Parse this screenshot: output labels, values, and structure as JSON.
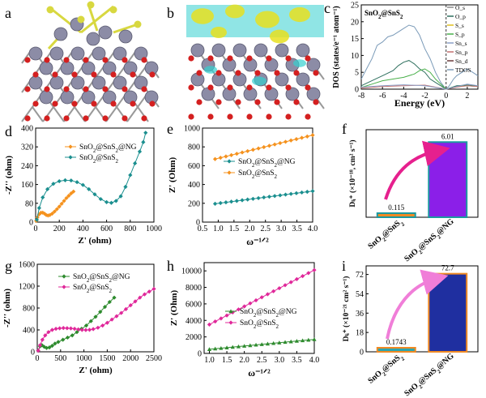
{
  "colors": {
    "orange": "#f5921e",
    "teal": "#1b8f8f",
    "green": "#2e8b2e",
    "magenta": "#e0289a",
    "purple": "#8b1fe8",
    "navy": "#1f2fa0",
    "barOrange": "#f08a24",
    "tealEdge": "#1b9aa0",
    "snAtom": "#8c8ca6",
    "oAtom": "#d42020",
    "sAtom": "#d8d840",
    "cyanIso": "#35d0d0",
    "yellowIso": "#e8e020"
  },
  "panels": {
    "a": {
      "label": "a"
    },
    "b": {
      "label": "b"
    },
    "c": {
      "label": "c"
    },
    "d": {
      "label": "d"
    },
    "e": {
      "label": "e"
    },
    "f": {
      "label": "f"
    },
    "g": {
      "label": "g"
    },
    "h": {
      "label": "h"
    },
    "i": {
      "label": "i"
    }
  },
  "chart_data": [
    {
      "id": "c",
      "type": "line",
      "title": "SnO2@SnS2",
      "xlabel": "Energy (eV)",
      "ylabel": "DOS (states/e⁻¹ atom⁻¹)",
      "xlim": [
        -8,
        3
      ],
      "ylim": [
        0,
        25
      ],
      "xticks": [
        -8,
        -6,
        -4,
        -2,
        0,
        2
      ],
      "yticks": [
        0,
        5,
        10,
        15,
        20,
        25
      ],
      "fermi_level": 0,
      "legend": [
        "O_s",
        "O_p",
        "S_s",
        "S_p",
        "Sn_s",
        "Sn_p",
        "Sn_d",
        "TDOS"
      ],
      "series": [
        {
          "name": "TDOS",
          "color": "#7a9ab8",
          "x": [
            -8,
            -7.5,
            -7,
            -6.5,
            -6,
            -5.5,
            -5,
            -4.5,
            -4,
            -3.5,
            -3,
            -2.5,
            -2,
            -1.5,
            -1,
            -0.5,
            0,
            0.3,
            0.7,
            1,
            1.5,
            2,
            2.5,
            3
          ],
          "y": [
            3,
            6,
            9,
            13,
            14,
            15.5,
            16,
            17,
            18,
            19,
            18.5,
            16,
            12,
            9,
            5,
            2,
            0,
            1,
            3,
            4,
            5,
            6,
            5,
            4
          ]
        },
        {
          "name": "O_p",
          "color": "#2e6f5e",
          "x": [
            -8,
            -7,
            -6,
            -5,
            -4.5,
            -4,
            -3.5,
            -3,
            -2.5,
            -2,
            -1.5,
            -1,
            -0.5,
            0,
            0.5,
            1,
            2,
            3
          ],
          "y": [
            1,
            2.5,
            4,
            5.5,
            7,
            8,
            8.5,
            7.5,
            6,
            5,
            3,
            2,
            1,
            0,
            0.5,
            1,
            1.2,
            1
          ]
        },
        {
          "name": "S_p",
          "color": "#49b04a",
          "x": [
            -8,
            -7,
            -6,
            -5,
            -4,
            -3,
            -2.5,
            -2,
            -1.5,
            -1,
            -0.5,
            0,
            1,
            2,
            3
          ],
          "y": [
            0.5,
            1.5,
            2.5,
            3,
            3.5,
            4.5,
            5.5,
            6,
            5,
            3,
            1.5,
            0,
            0.8,
            1,
            0.8
          ]
        },
        {
          "name": "Sn_p",
          "color": "#c47070",
          "x": [
            -8,
            -6,
            -4,
            -2,
            0,
            1,
            2,
            3
          ],
          "y": [
            0.3,
            0.8,
            1,
            1.2,
            0,
            0.6,
            1,
            0.8
          ]
        },
        {
          "name": "Sn_s",
          "color": "#8aa0c8",
          "x": [
            -8,
            -6,
            -4,
            -2,
            0,
            1,
            2,
            3
          ],
          "y": [
            0.6,
            1,
            1.3,
            1,
            0,
            0.8,
            1.5,
            1
          ]
        }
      ]
    },
    {
      "id": "d",
      "type": "scatter",
      "xlabel": "Z' (ohm)",
      "ylabel": "-Z'' (ohm)",
      "xlim": [
        0,
        1000
      ],
      "ylim": [
        0,
        400
      ],
      "xticks": [
        0,
        200,
        400,
        600,
        800,
        1000
      ],
      "yticks": [
        0,
        80,
        160,
        240,
        320,
        400
      ],
      "series": [
        {
          "name": "SnO2@SnS2@NG",
          "color": "#f5921e",
          "marker": "diamond",
          "x": [
            5,
            15,
            30,
            45,
            60,
            75,
            90,
            105,
            120,
            140,
            160,
            180,
            200,
            220,
            240,
            260,
            280,
            300,
            320
          ],
          "y": [
            5,
            20,
            33,
            40,
            40,
            36,
            30,
            28,
            30,
            36,
            45,
            55,
            66,
            78,
            90,
            102,
            112,
            122,
            130
          ]
        },
        {
          "name": "SnO2@SnS2",
          "color": "#1b8f8f",
          "marker": "diamond",
          "x": [
            10,
            30,
            60,
            100,
            150,
            200,
            250,
            300,
            350,
            400,
            450,
            500,
            550,
            600,
            640,
            680,
            720,
            760,
            800,
            840,
            880,
            910,
            930
          ],
          "y": [
            10,
            60,
            105,
            140,
            163,
            174,
            178,
            177,
            170,
            158,
            140,
            118,
            98,
            85,
            82,
            90,
            110,
            150,
            200,
            250,
            300,
            340,
            380
          ]
        }
      ]
    },
    {
      "id": "e",
      "type": "line",
      "xlabel": "ω⁻¹ᐟ²",
      "ylabel": "Z' (Ohm)",
      "xlim": [
        0.5,
        4.0
      ],
      "ylim": [
        0,
        1000
      ],
      "xticks": [
        0.5,
        1.0,
        1.5,
        2.0,
        2.5,
        3.0,
        3.5,
        4.0
      ],
      "yticks": [
        0,
        200,
        400,
        600,
        800,
        1000
      ],
      "series": [
        {
          "name": "SnO2@SnS2@NG",
          "color": "#1b8f8f",
          "marker": "diamond",
          "x_range": [
            0.9,
            4.0
          ],
          "y_range": [
            195,
            330
          ]
        },
        {
          "name": "SnO2@SnS2",
          "color": "#f5921e",
          "marker": "diamond",
          "x_range": [
            0.9,
            4.0
          ],
          "y_range": [
            670,
            925
          ]
        }
      ]
    },
    {
      "id": "f",
      "type": "bar",
      "ylabel": "Dₗᵢ⁺ (×10⁻¹⁸, cm² s⁻¹)",
      "categories": [
        "SnO2@SnS2",
        "SnO2@SnS2@NG"
      ],
      "values": [
        0.115,
        6.01
      ],
      "value_labels": [
        "0.115",
        "6.01"
      ],
      "ylim": [
        0,
        7
      ]
    },
    {
      "id": "g",
      "type": "scatter",
      "xlabel": "Z' (ohm)",
      "ylabel": "-Z'' (ohm)",
      "xlim": [
        0,
        2500
      ],
      "ylim": [
        0,
        1600
      ],
      "xticks": [
        0,
        500,
        1000,
        1500,
        2000,
        2500
      ],
      "yticks": [
        0,
        400,
        800,
        1200,
        1600
      ],
      "series": [
        {
          "name": "SnO2@SnS2@NG",
          "color": "#2e8b2e",
          "marker": "diamond",
          "x": [
            20,
            60,
            100,
            150,
            200,
            260,
            320,
            380,
            450,
            550,
            650,
            750,
            850,
            950,
            1050,
            1150,
            1250,
            1350,
            1450,
            1550,
            1650
          ],
          "y": [
            20,
            100,
            120,
            90,
            70,
            80,
            110,
            150,
            180,
            220,
            260,
            300,
            360,
            420,
            480,
            560,
            640,
            730,
            820,
            910,
            990
          ]
        },
        {
          "name": "SnO2@SnS2",
          "color": "#e0289a",
          "marker": "diamond",
          "x": [
            20,
            60,
            110,
            170,
            240,
            320,
            400,
            480,
            560,
            640,
            720,
            800,
            880,
            960,
            1040,
            1120,
            1200,
            1300,
            1400,
            1500,
            1600,
            1700,
            1800,
            1900,
            2000,
            2100,
            2200,
            2300,
            2400,
            2500
          ],
          "y": [
            20,
            120,
            220,
            300,
            360,
            400,
            420,
            430,
            435,
            432,
            428,
            420,
            410,
            400,
            398,
            402,
            415,
            440,
            480,
            530,
            590,
            650,
            710,
            780,
            850,
            920,
            990,
            1050,
            1100,
            1150
          ]
        }
      ]
    },
    {
      "id": "h",
      "type": "line",
      "xlabel": "ω⁻¹ᐟ²",
      "ylabel": "Z' (Ohm)",
      "xlim": [
        0.85,
        4.0
      ],
      "ylim": [
        0,
        11000
      ],
      "xticks": [
        1.0,
        1.5,
        2.0,
        2.5,
        3.0,
        3.5,
        4.0
      ],
      "yticks": [
        0,
        2000,
        4000,
        6000,
        8000,
        10000
      ],
      "series": [
        {
          "name": "SnO2@SnS2@NG",
          "color": "#2e8b2e",
          "marker": "triangle",
          "x_range": [
            1.0,
            4.0
          ],
          "y_range": [
            500,
            1700
          ]
        },
        {
          "name": "SnO2@SnS2",
          "color": "#e0289a",
          "marker": "diamond",
          "x_range": [
            1.0,
            4.0
          ],
          "y_range": [
            3500,
            10100
          ]
        }
      ]
    },
    {
      "id": "i",
      "type": "bar",
      "ylabel": "Dₗᵢ⁺ (×10⁻²¹ cm² s⁻¹)",
      "categories": [
        "SnO2@SnS2",
        "SnO2@SnS2@NG"
      ],
      "values": [
        0.1743,
        72.7
      ],
      "value_labels": [
        "0.1743",
        "72.7"
      ],
      "ylim": [
        0,
        80
      ],
      "yticks": [
        0,
        18,
        36,
        54,
        72
      ]
    }
  ]
}
